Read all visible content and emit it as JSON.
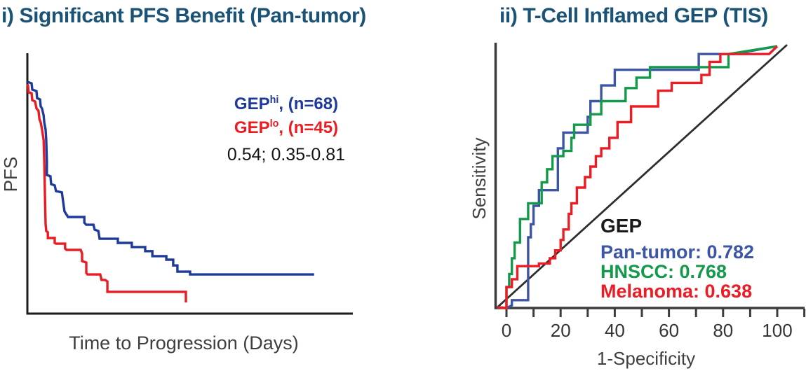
{
  "figure": {
    "title_color": "#1a5375",
    "background": "#ffffff",
    "left_panel_title": "i) Significant PFS Benefit (Pan-tumor)",
    "right_panel_title": "ii) T-Cell Inflamed GEP (TIS)"
  },
  "chart_data": [
    {
      "type": "line",
      "subtype": "kaplan-meier",
      "title": "i) Significant PFS Benefit (Pan-tumor)",
      "xlabel": "Time to Progression (Days)",
      "ylabel": "PFS",
      "axis_note": "no tick labels shown; coordinates normalized 0-100",
      "xlim": [
        0,
        100
      ],
      "ylim": [
        0,
        100
      ],
      "grid": false,
      "legend_position": "upper right inside",
      "annotation": {
        "hazard_ratio_text": "0.54; 0.35-0.81"
      },
      "series": [
        {
          "name": "GEP-hi",
          "legend": {
            "prefix": "GEP",
            "sup": "hi",
            "suffix": ", (n=68)"
          },
          "n": 68,
          "color": "#1e3a9a",
          "points": [
            [
              0,
              89.5
            ],
            [
              1.3,
              88.9
            ],
            [
              1.5,
              86.5
            ],
            [
              2.8,
              85.9
            ],
            [
              3.0,
              83.2
            ],
            [
              3.9,
              82.7
            ],
            [
              4.1,
              80.0
            ],
            [
              4.5,
              79.2
            ],
            [
              5.0,
              76.5
            ],
            [
              5.2,
              73.8
            ],
            [
              5.6,
              71.1
            ],
            [
              5.8,
              67.0
            ],
            [
              6.0,
              58.9
            ],
            [
              6.0,
              53.5
            ],
            [
              7.1,
              53.0
            ],
            [
              7.3,
              50.0
            ],
            [
              8.4,
              49.5
            ],
            [
              8.8,
              47.3
            ],
            [
              10.6,
              46.8
            ],
            [
              11.4,
              39.5
            ],
            [
              12.5,
              37.3
            ],
            [
              17.5,
              37.3
            ],
            [
              17.5,
              35.1
            ],
            [
              18.1,
              34.3
            ],
            [
              20.3,
              34.3
            ],
            [
              20.7,
              32.4
            ],
            [
              21.8,
              31.9
            ],
            [
              22.2,
              28.9
            ],
            [
              27.8,
              28.9
            ],
            [
              27.8,
              27.3
            ],
            [
              32.1,
              27.3
            ],
            [
              32.1,
              25.7
            ],
            [
              36.2,
              25.7
            ],
            [
              36.2,
              24.1
            ],
            [
              38.4,
              24.1
            ],
            [
              38.4,
              22.2
            ],
            [
              42.7,
              22.2
            ],
            [
              42.7,
              20.8
            ],
            [
              44.8,
              20.8
            ],
            [
              44.8,
              18.6
            ],
            [
              46.1,
              18.6
            ],
            [
              46.1,
              16.2
            ],
            [
              50.0,
              16.2
            ],
            [
              50.0,
              15.1
            ],
            [
              88.1,
              15.1
            ]
          ]
        },
        {
          "name": "GEP-lo",
          "legend": {
            "prefix": "GEP",
            "sup": "lo",
            "suffix": ", (n=45)"
          },
          "n": 45,
          "color": "#ea1c23",
          "points": [
            [
              0,
              88.6
            ],
            [
              0.2,
              88.1
            ],
            [
              0.4,
              85.4
            ],
            [
              1.3,
              85.1
            ],
            [
              1.5,
              82.4
            ],
            [
              2.4,
              81.9
            ],
            [
              2.8,
              79.2
            ],
            [
              3.4,
              78.4
            ],
            [
              3.7,
              75.1
            ],
            [
              4.1,
              73.8
            ],
            [
              4.5,
              71.1
            ],
            [
              5.0,
              67.0
            ],
            [
              5.2,
              58.9
            ],
            [
              5.4,
              45.4
            ],
            [
              5.6,
              34.6
            ],
            [
              5.8,
              31.9
            ],
            [
              6.3,
              31.4
            ],
            [
              6.3,
              29.2
            ],
            [
              8.4,
              29.2
            ],
            [
              8.4,
              27.3
            ],
            [
              8.8,
              27.0
            ],
            [
              11.6,
              27.0
            ],
            [
              11.6,
              25.1
            ],
            [
              12.1,
              24.6
            ],
            [
              16.4,
              24.6
            ],
            [
              16.8,
              23.2
            ],
            [
              16.8,
              20.3
            ],
            [
              18.1,
              19.7
            ],
            [
              18.1,
              15.7
            ],
            [
              18.5,
              15.1
            ],
            [
              22.4,
              15.1
            ],
            [
              22.8,
              13.0
            ],
            [
              23.9,
              13.0
            ],
            [
              24.6,
              12.4
            ],
            [
              24.6,
              8.4
            ],
            [
              48.7,
              8.4
            ],
            [
              48.7,
              4.3
            ]
          ]
        }
      ]
    },
    {
      "type": "line",
      "subtype": "roc",
      "title": "ii) T-Cell Inflamed GEP (TIS)",
      "xlabel": "1-Specificity",
      "ylabel": "Sensitivity",
      "x_ticks": [
        0,
        20,
        40,
        60,
        80,
        100
      ],
      "xlim": [
        0,
        100
      ],
      "ylim": [
        0,
        100
      ],
      "grid": false,
      "diagonal_reference_line": true,
      "legend_title": "GEP",
      "legend_position": "lower right inside",
      "series": [
        {
          "name": "Pan-tumor",
          "auc": 0.782,
          "legend_text": "Pan-tumor: 0.782",
          "color": "#3c55a6",
          "points": [
            [
              0,
              0
            ],
            [
              2,
              1
            ],
            [
              2,
              3
            ],
            [
              8,
              3
            ],
            [
              8,
              27
            ],
            [
              9,
              27
            ],
            [
              9,
              32
            ],
            [
              10,
              32
            ],
            [
              10,
              39
            ],
            [
              12,
              39
            ],
            [
              12,
              45
            ],
            [
              19,
              45
            ],
            [
              19,
              61
            ],
            [
              21,
              61
            ],
            [
              21,
              67
            ],
            [
              30,
              67
            ],
            [
              30,
              73
            ],
            [
              31,
              73
            ],
            [
              31,
              79
            ],
            [
              35,
              79
            ],
            [
              35,
              85
            ],
            [
              40,
              85
            ],
            [
              40,
              91
            ],
            [
              71,
              91
            ],
            [
              71,
              97
            ],
            [
              84,
              97
            ],
            [
              100,
              100
            ]
          ]
        },
        {
          "name": "HNSCC",
          "auc": 0.768,
          "legend_text": "HNSCC: 0.768",
          "color": "#13994a",
          "points": [
            [
              0,
              0
            ],
            [
              0,
              8
            ],
            [
              1,
              8
            ],
            [
              1,
              13
            ],
            [
              2,
              13
            ],
            [
              2,
              19
            ],
            [
              3,
              19
            ],
            [
              3,
              25
            ],
            [
              5,
              25
            ],
            [
              5,
              34
            ],
            [
              8,
              34
            ],
            [
              8,
              40
            ],
            [
              13,
              40
            ],
            [
              13,
              48
            ],
            [
              15,
              48
            ],
            [
              15,
              53
            ],
            [
              17,
              53
            ],
            [
              17,
              58
            ],
            [
              21,
              58
            ],
            [
              21,
              60
            ],
            [
              24,
              60
            ],
            [
              24,
              65
            ],
            [
              25,
              65
            ],
            [
              25,
              70
            ],
            [
              31,
              70
            ],
            [
              31,
              74
            ],
            [
              35,
              74
            ],
            [
              35,
              79
            ],
            [
              44,
              79
            ],
            [
              44,
              84
            ],
            [
              48,
              84
            ],
            [
              48,
              88
            ],
            [
              53,
              88
            ],
            [
              53,
              92
            ],
            [
              82,
              92
            ],
            [
              82,
              97
            ],
            [
              100,
              100
            ]
          ]
        },
        {
          "name": "Melanoma",
          "auc": 0.638,
          "legend_text": "Melanoma: 0.638",
          "color": "#ec1c24",
          "points": [
            [
              0,
              0
            ],
            [
              0,
              8
            ],
            [
              2,
              8
            ],
            [
              2,
              11
            ],
            [
              4,
              11
            ],
            [
              4,
              16
            ],
            [
              12,
              16
            ],
            [
              12,
              17
            ],
            [
              16,
              17
            ],
            [
              16,
              19
            ],
            [
              18,
              19
            ],
            [
              18,
              22
            ],
            [
              20,
              22
            ],
            [
              20,
              26
            ],
            [
              21,
              26
            ],
            [
              21,
              30
            ],
            [
              23,
              30
            ],
            [
              23,
              36
            ],
            [
              24,
              36
            ],
            [
              24,
              40
            ],
            [
              26,
              40
            ],
            [
              26,
              46
            ],
            [
              29,
              46
            ],
            [
              29,
              50
            ],
            [
              31,
              50
            ],
            [
              31,
              54
            ],
            [
              33,
              54
            ],
            [
              33,
              58
            ],
            [
              35,
              58
            ],
            [
              35,
              61
            ],
            [
              38,
              61
            ],
            [
              38,
              65
            ],
            [
              41,
              65
            ],
            [
              41,
              71
            ],
            [
              46,
              71
            ],
            [
              46,
              77
            ],
            [
              56,
              77
            ],
            [
              56,
              83
            ],
            [
              61,
              83
            ],
            [
              61,
              86
            ],
            [
              72,
              86
            ],
            [
              72,
              89
            ],
            [
              75,
              89
            ],
            [
              75,
              94
            ],
            [
              79,
              94
            ],
            [
              79,
              97
            ],
            [
              97,
              97
            ],
            [
              100,
              100
            ]
          ]
        }
      ]
    }
  ]
}
